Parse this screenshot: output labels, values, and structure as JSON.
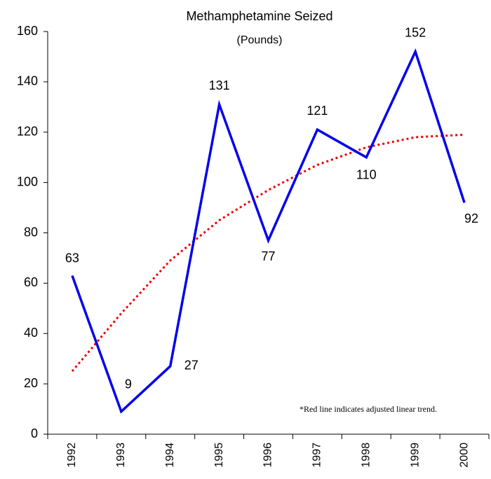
{
  "chart_data": {
    "type": "line",
    "title": "Methamphetamine Seized",
    "subtitle": "(Pounds)",
    "annotation": "*Red line indicates adjusted linear trend.",
    "categories": [
      "1992",
      "1993",
      "1994",
      "1995",
      "1996",
      "1997",
      "1998",
      "1999",
      "2000"
    ],
    "series": [
      {
        "color": "#0000ee",
        "values": [
          63,
          9,
          27,
          131,
          77,
          121,
          110,
          152,
          92
        ]
      },
      {
        "color": "#ee0000",
        "dashed": true,
        "values": [
          25,
          48,
          69,
          85,
          97,
          107,
          114,
          118,
          119
        ]
      }
    ],
    "data_labels_series": 0,
    "ylim": [
      0,
      160
    ],
    "yticks": [
      0,
      20,
      40,
      60,
      80,
      100,
      120,
      140,
      160
    ],
    "grid": false
  }
}
